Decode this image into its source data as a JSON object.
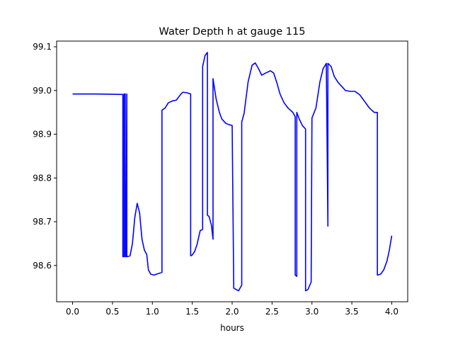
{
  "chart_data": {
    "type": "line",
    "title": "Water Depth h at gauge 115",
    "xlabel": "hours",
    "ylabel": "",
    "xlim": [
      -0.2,
      4.2
    ],
    "ylim": [
      98.517,
      99.113
    ],
    "grid": false,
    "x_ticks": [
      "0.0",
      "0.5",
      "1.0",
      "1.5",
      "2.0",
      "2.5",
      "3.0",
      "3.5",
      "4.0"
    ],
    "y_ticks": [
      "98.6",
      "98.7",
      "98.8",
      "98.9",
      "99.0",
      "99.1"
    ],
    "series": [
      {
        "color": "#0000ff",
        "points": [
          [
            0.0,
            98.992
          ],
          [
            0.3,
            98.992
          ],
          [
            0.62,
            98.991
          ],
          [
            0.63,
            98.991
          ],
          [
            0.63,
            98.62
          ],
          [
            0.645,
            98.62
          ],
          [
            0.645,
            98.992
          ],
          [
            0.66,
            98.992
          ],
          [
            0.66,
            98.62
          ],
          [
            0.67,
            98.62
          ],
          [
            0.68,
            98.992
          ],
          [
            0.68,
            98.62
          ],
          [
            0.72,
            98.622
          ],
          [
            0.75,
            98.65
          ],
          [
            0.78,
            98.71
          ],
          [
            0.81,
            98.742
          ],
          [
            0.84,
            98.72
          ],
          [
            0.87,
            98.66
          ],
          [
            0.9,
            98.635
          ],
          [
            0.93,
            98.625
          ],
          [
            0.95,
            98.59
          ],
          [
            0.98,
            98.58
          ],
          [
            1.02,
            98.578
          ],
          [
            1.05,
            98.58
          ],
          [
            1.12,
            98.584
          ],
          [
            1.12,
            98.955
          ],
          [
            1.16,
            98.96
          ],
          [
            1.2,
            98.972
          ],
          [
            1.25,
            98.976
          ],
          [
            1.3,
            98.978
          ],
          [
            1.35,
            98.99
          ],
          [
            1.38,
            98.996
          ],
          [
            1.43,
            98.995
          ],
          [
            1.48,
            98.992
          ],
          [
            1.48,
            98.622
          ],
          [
            1.5,
            98.624
          ],
          [
            1.53,
            98.632
          ],
          [
            1.56,
            98.648
          ],
          [
            1.6,
            98.68
          ],
          [
            1.63,
            98.682
          ],
          [
            1.63,
            99.055
          ],
          [
            1.66,
            99.08
          ],
          [
            1.69,
            99.087
          ],
          [
            1.69,
            98.715
          ],
          [
            1.71,
            98.712
          ],
          [
            1.74,
            98.692
          ],
          [
            1.76,
            98.66
          ],
          [
            1.76,
            99.027
          ],
          [
            1.8,
            98.98
          ],
          [
            1.84,
            98.95
          ],
          [
            1.87,
            98.935
          ],
          [
            1.92,
            98.925
          ],
          [
            1.96,
            98.922
          ],
          [
            2.0,
            98.92
          ],
          [
            2.02,
            98.548
          ],
          [
            2.05,
            98.545
          ],
          [
            2.08,
            98.542
          ],
          [
            2.12,
            98.555
          ],
          [
            2.12,
            98.928
          ],
          [
            2.15,
            98.948
          ],
          [
            2.2,
            99.02
          ],
          [
            2.25,
            99.058
          ],
          [
            2.29,
            99.063
          ],
          [
            2.33,
            99.05
          ],
          [
            2.37,
            99.035
          ],
          [
            2.42,
            99.04
          ],
          [
            2.48,
            99.045
          ],
          [
            2.52,
            99.04
          ],
          [
            2.56,
            99.018
          ],
          [
            2.6,
            98.992
          ],
          [
            2.65,
            98.972
          ],
          [
            2.7,
            98.96
          ],
          [
            2.76,
            98.95
          ],
          [
            2.79,
            98.94
          ],
          [
            2.79,
            98.578
          ],
          [
            2.81,
            98.575
          ],
          [
            2.81,
            98.95
          ],
          [
            2.84,
            98.935
          ],
          [
            2.88,
            98.92
          ],
          [
            2.92,
            98.912
          ],
          [
            2.92,
            98.542
          ],
          [
            2.95,
            98.545
          ],
          [
            2.99,
            98.562
          ],
          [
            3.0,
            98.937
          ],
          [
            3.05,
            98.96
          ],
          [
            3.1,
            99.02
          ],
          [
            3.14,
            99.05
          ],
          [
            3.18,
            99.062
          ],
          [
            3.2,
            98.69
          ],
          [
            3.2,
            99.062
          ],
          [
            3.24,
            99.055
          ],
          [
            3.28,
            99.032
          ],
          [
            3.33,
            99.018
          ],
          [
            3.38,
            99.008
          ],
          [
            3.42,
            99.0
          ],
          [
            3.48,
            98.998
          ],
          [
            3.54,
            98.998
          ],
          [
            3.6,
            98.99
          ],
          [
            3.66,
            98.975
          ],
          [
            3.72,
            98.96
          ],
          [
            3.78,
            98.95
          ],
          [
            3.82,
            98.95
          ],
          [
            3.82,
            98.578
          ],
          [
            3.86,
            98.58
          ],
          [
            3.9,
            98.59
          ],
          [
            3.94,
            98.61
          ],
          [
            3.97,
            98.635
          ],
          [
            4.0,
            98.668
          ]
        ]
      }
    ]
  }
}
